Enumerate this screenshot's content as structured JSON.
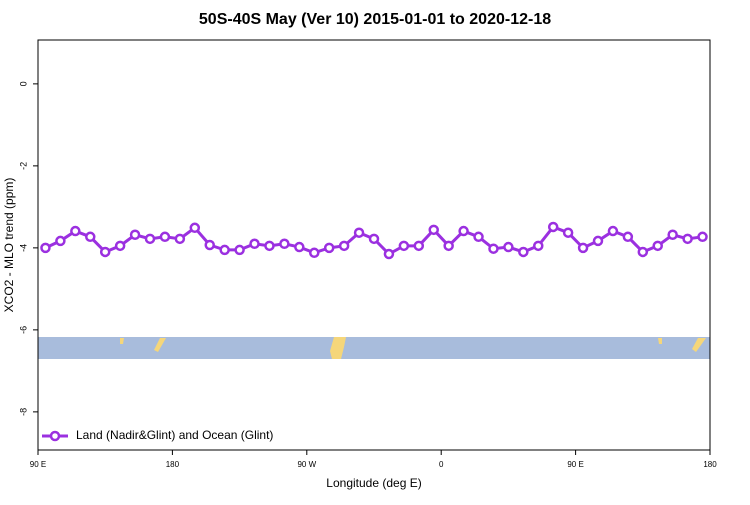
{
  "chart_data": {
    "type": "line",
    "title": "50S-40S May (Ver 10)   2015-01-01 to 2020-12-18",
    "x_label": "Longitude (deg E)",
    "y_label": "XCO2 - MLO trend (ppm)",
    "x": [
      95,
      105,
      115,
      125,
      135,
      145,
      155,
      165,
      175,
      185,
      195,
      205,
      215,
      225,
      235,
      245,
      255,
      265,
      275,
      285,
      295,
      305,
      315,
      325,
      335,
      345,
      355,
      365,
      375,
      385,
      395,
      405,
      415,
      425,
      435,
      445,
      455,
      465,
      475,
      485,
      495,
      505,
      515,
      525,
      535
    ],
    "series": [
      {
        "name": "Land (Nadir&Glint) and Ocean (Glint)",
        "color": "#9b30e0",
        "values": [
          -4.0,
          -3.83,
          -3.59,
          -3.73,
          -4.1,
          -3.95,
          -3.68,
          -3.78,
          -3.73,
          -3.78,
          -3.51,
          -3.93,
          -4.05,
          -4.05,
          -3.9,
          -3.95,
          -3.9,
          -3.98,
          -4.12,
          -4.0,
          -3.95,
          -3.63,
          -3.78,
          -4.15,
          -3.95,
          -3.95,
          -3.56,
          -3.95,
          -3.59,
          -3.73,
          -4.02,
          -3.98,
          -4.1,
          -3.95,
          -3.49,
          -3.63,
          -4.0,
          -3.83,
          -3.59,
          -3.73,
          -4.1,
          -3.95,
          -3.68,
          -3.78,
          -3.73
        ]
      }
    ],
    "xlim": [
      90,
      540
    ],
    "xticks": [
      {
        "value": 90,
        "label": "90 E"
      },
      {
        "value": 180,
        "label": "180"
      },
      {
        "value": 270,
        "label": "90 W"
      },
      {
        "value": 360,
        "label": "0"
      },
      {
        "value": 450,
        "label": "90 E"
      },
      {
        "value": 540,
        "label": "180"
      }
    ],
    "ylim": [
      -8.93,
      1.07
    ],
    "yticks": [
      0,
      -2,
      -4,
      -6,
      -8
    ],
    "legend": "bottom-left"
  }
}
